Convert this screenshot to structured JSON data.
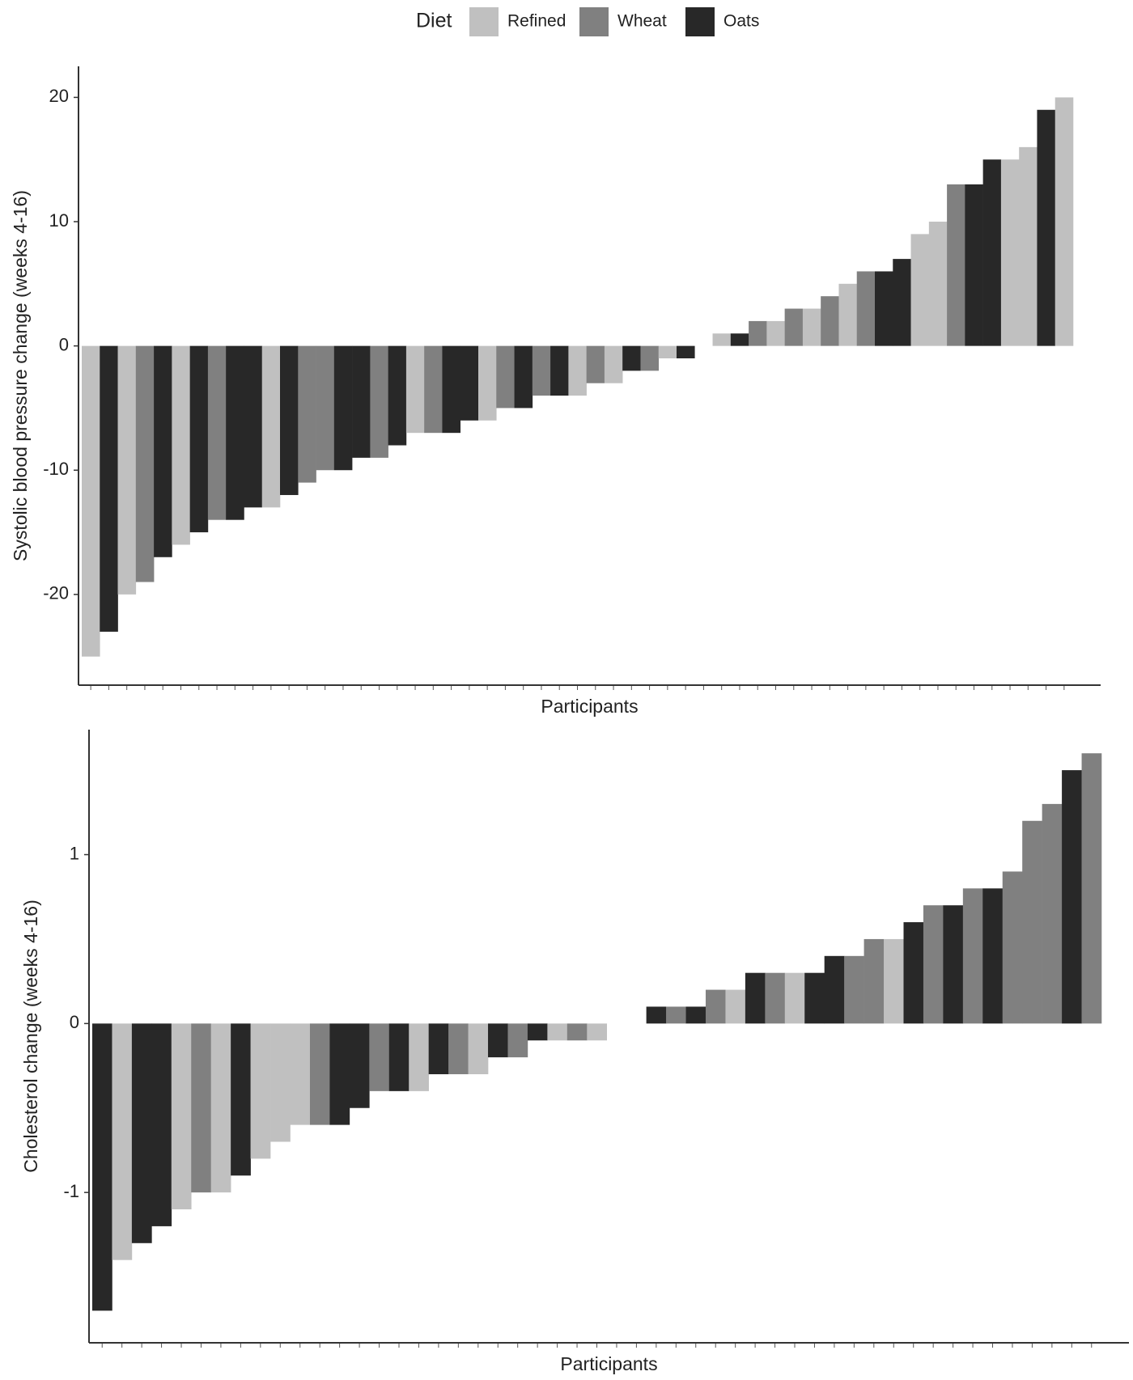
{
  "legend": {
    "title": "Diet",
    "items": [
      {
        "name": "Refined",
        "color": "#c0c0c0"
      },
      {
        "name": "Wheat",
        "color": "#808080"
      },
      {
        "name": "Oats",
        "color": "#282828"
      }
    ]
  },
  "chart_data": [
    {
      "type": "bar",
      "x_label": "Participants",
      "y_label": "Systolic blood pressure change (weeks 4-16)",
      "ylim": [
        -27.3,
        22.5
      ],
      "yticks": [
        -20,
        -10,
        0,
        10,
        20
      ],
      "categories": [
        null,
        null,
        null,
        null,
        null,
        null,
        null,
        null,
        null,
        null,
        null,
        null,
        null,
        null,
        null,
        null,
        null,
        null,
        null,
        null,
        null,
        null,
        null,
        null,
        null,
        null,
        null,
        null,
        null,
        null,
        null,
        null,
        null,
        null,
        null,
        null,
        null,
        null,
        null,
        null,
        null,
        null,
        null,
        null,
        null,
        null,
        null,
        null,
        null,
        null,
        null,
        null,
        null,
        null,
        null
      ],
      "values": [
        -25,
        -23,
        -20,
        -19,
        -17,
        -16,
        -15,
        -14,
        -14,
        -13,
        -13,
        -12,
        -11,
        -10,
        -10,
        -9,
        -9,
        -8,
        -7,
        -7,
        -7,
        -6,
        -6,
        -5,
        -5,
        -4,
        -4,
        -4,
        -3,
        -3,
        -2,
        -2,
        -1,
        -1,
        0,
        1,
        1,
        2,
        2,
        3,
        3,
        4,
        5,
        6,
        6,
        7,
        9,
        10,
        13,
        13,
        15,
        15,
        16,
        19,
        20
      ],
      "colors": [
        "#c0c0c0",
        "#282828",
        "#c0c0c0",
        "#808080",
        "#282828",
        "#c0c0c0",
        "#282828",
        "#808080",
        "#282828",
        "#282828",
        "#c0c0c0",
        "#282828",
        "#808080",
        "#808080",
        "#282828",
        "#282828",
        "#808080",
        "#282828",
        "#c0c0c0",
        "#808080",
        "#282828",
        "#282828",
        "#c0c0c0",
        "#808080",
        "#282828",
        "#808080",
        "#282828",
        "#c0c0c0",
        "#808080",
        "#c0c0c0",
        "#282828",
        "#808080",
        "#c0c0c0",
        "#282828",
        "#282828",
        "#c0c0c0",
        "#282828",
        "#808080",
        "#c0c0c0",
        "#808080",
        "#c0c0c0",
        "#808080",
        "#c0c0c0",
        "#808080",
        "#282828",
        "#282828",
        "#c0c0c0",
        "#c0c0c0",
        "#808080",
        "#282828",
        "#282828",
        "#c0c0c0",
        "#c0c0c0",
        "#282828",
        "#c0c0c0"
      ]
    },
    {
      "type": "bar",
      "x_label": "Participants",
      "y_label": "Cholesterol change (weeks 4-16)",
      "ylim": [
        -1.89,
        1.74
      ],
      "yticks": [
        -1,
        0,
        1
      ],
      "categories": [
        null,
        null,
        null,
        null,
        null,
        null,
        null,
        null,
        null,
        null,
        null,
        null,
        null,
        null,
        null,
        null,
        null,
        null,
        null,
        null,
        null,
        null,
        null,
        null,
        null,
        null,
        null,
        null,
        null,
        null,
        null,
        null,
        null,
        null,
        null,
        null,
        null,
        null,
        null,
        null,
        null,
        null,
        null,
        null,
        null,
        null,
        null,
        null,
        null,
        null,
        null
      ],
      "values": [
        -1.7,
        -1.4,
        -1.3,
        -1.2,
        -1.1,
        -1,
        -1,
        -0.9,
        -0.8,
        -0.7,
        -0.6,
        -0.6,
        -0.6,
        -0.5,
        -0.4,
        -0.4,
        -0.4,
        -0.3,
        -0.3,
        -0.3,
        -0.2,
        -0.2,
        -0.1,
        -0.1,
        -0.1,
        -0.1,
        0,
        0,
        0.1,
        0.1,
        0.1,
        0.2,
        0.2,
        0.3,
        0.3,
        0.3,
        0.3,
        0.4,
        0.4,
        0.5,
        0.5,
        0.6,
        0.7,
        0.7,
        0.8,
        0.8,
        0.9,
        1.2,
        1.3,
        1.5,
        1.6
      ],
      "colors": [
        "#282828",
        "#c0c0c0",
        "#282828",
        "#282828",
        "#c0c0c0",
        "#808080",
        "#c0c0c0",
        "#282828",
        "#c0c0c0",
        "#c0c0c0",
        "#c0c0c0",
        "#808080",
        "#282828",
        "#282828",
        "#808080",
        "#282828",
        "#c0c0c0",
        "#282828",
        "#808080",
        "#c0c0c0",
        "#282828",
        "#808080",
        "#282828",
        "#c0c0c0",
        "#808080",
        "#c0c0c0",
        "#282828",
        "#808080",
        "#282828",
        "#808080",
        "#282828",
        "#808080",
        "#c0c0c0",
        "#282828",
        "#808080",
        "#c0c0c0",
        "#282828",
        "#282828",
        "#808080",
        "#808080",
        "#c0c0c0",
        "#282828",
        "#808080",
        "#282828",
        "#808080",
        "#282828",
        "#808080",
        "#808080",
        "#808080",
        "#282828",
        "#808080"
      ]
    }
  ]
}
